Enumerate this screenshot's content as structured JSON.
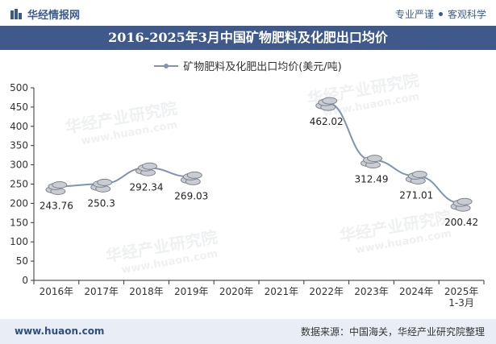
{
  "header": {
    "logo_text": "华经情报网",
    "slogan_left": "专业严谨",
    "slogan_right": "客观科学"
  },
  "title": "2016-2025年3月中国矿物肥料及化肥出口均价",
  "watermark": {
    "text": "华经产业研究院",
    "url": "www.huaon.com"
  },
  "footer": {
    "website": "www.huaon.com",
    "source": "数据来源：中国海关，华经产业研究院整理"
  },
  "colors": {
    "title_bg": "#3f5a8a",
    "line": "#7f93b5",
    "footer_bg": "#e9eef6"
  },
  "chart_data": {
    "type": "line",
    "title": "2016-2025年3月中国矿物肥料及化肥出口均价",
    "series": [
      {
        "name": "矿物肥料及化肥出口均价(美元/吨)",
        "values": [
          243.76,
          250.3,
          292.34,
          269.03,
          null,
          null,
          462.02,
          312.49,
          271.01,
          200.42
        ],
        "labels": [
          "243.76",
          "250.3",
          "292.34",
          "269.03",
          "",
          "",
          "462.02",
          "312.49",
          "271.01",
          "200.42"
        ]
      }
    ],
    "categories": [
      [
        "2016年"
      ],
      [
        "2017年"
      ],
      [
        "2018年"
      ],
      [
        "2019年"
      ],
      [
        "2020年"
      ],
      [
        "2021年"
      ],
      [
        "2022年"
      ],
      [
        "2023年"
      ],
      [
        "2024年"
      ],
      [
        "2025年",
        "1-3月"
      ]
    ],
    "ylim": [
      0,
      500
    ],
    "yticks": [
      0,
      50,
      100,
      150,
      200,
      250,
      300,
      350,
      400,
      450,
      500
    ],
    "xlabel": "",
    "ylabel": "",
    "legend": "top-center",
    "grid": false
  }
}
